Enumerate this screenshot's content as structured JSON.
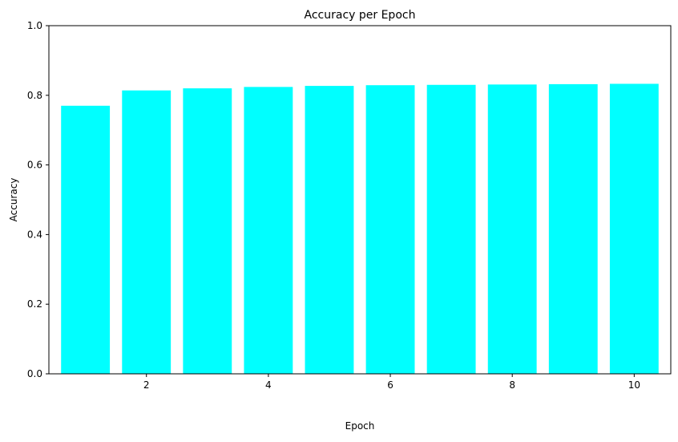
{
  "chart_data": {
    "type": "bar",
    "title": "Accuracy per Epoch",
    "xlabel": "Epoch",
    "ylabel": "Accuracy",
    "x": [
      1,
      2,
      3,
      4,
      5,
      6,
      7,
      8,
      9,
      10
    ],
    "values": [
      0.77,
      0.814,
      0.82,
      0.824,
      0.827,
      0.829,
      0.83,
      0.831,
      0.832,
      0.833
    ],
    "xlim": [
      0.4,
      10.6
    ],
    "ylim": [
      0,
      1.0
    ],
    "xticks": [
      2,
      4,
      6,
      8,
      10
    ],
    "xtick_labels": [
      "2",
      "4",
      "6",
      "8",
      "10"
    ],
    "yticks": [
      0.0,
      0.2,
      0.4,
      0.6,
      0.8,
      1.0
    ],
    "ytick_labels": [
      "0.0",
      "0.2",
      "0.4",
      "0.6",
      "0.8",
      "1.0"
    ],
    "bar_color": "#00ffff",
    "grid": false,
    "legend": "none"
  }
}
